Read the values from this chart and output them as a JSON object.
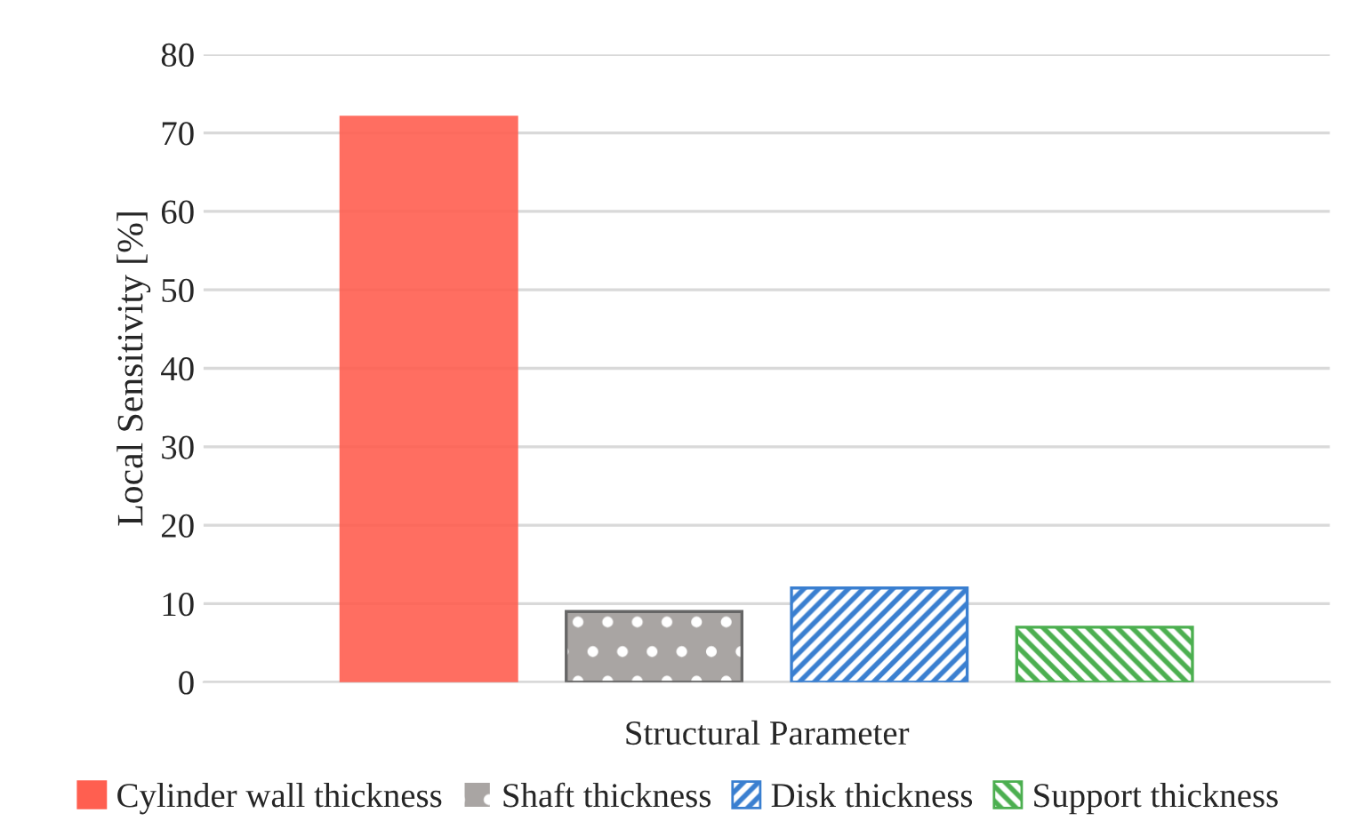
{
  "chart_data": {
    "type": "bar",
    "xlabel": "Structural Parameter",
    "ylabel": "Local Sensitivity [%]",
    "categories": [
      null
    ],
    "series": [
      {
        "name": "Cylinder wall thickness",
        "color": "#ff5f50",
        "values": [
          72
        ]
      },
      {
        "name": "Shaft thickness",
        "color": "#a9a5a3",
        "values": [
          9
        ]
      },
      {
        "name": "Disk thickness",
        "color": "#3a7fd0",
        "values": [
          12
        ]
      },
      {
        "name": "Support thickness",
        "color": "#4caf50",
        "values": [
          7
        ]
      }
    ],
    "ylim": [
      0,
      80
    ],
    "yticks": [
      0,
      10,
      20,
      30,
      40,
      50,
      60,
      70,
      80
    ],
    "grid": "y",
    "legend": "bottom"
  }
}
